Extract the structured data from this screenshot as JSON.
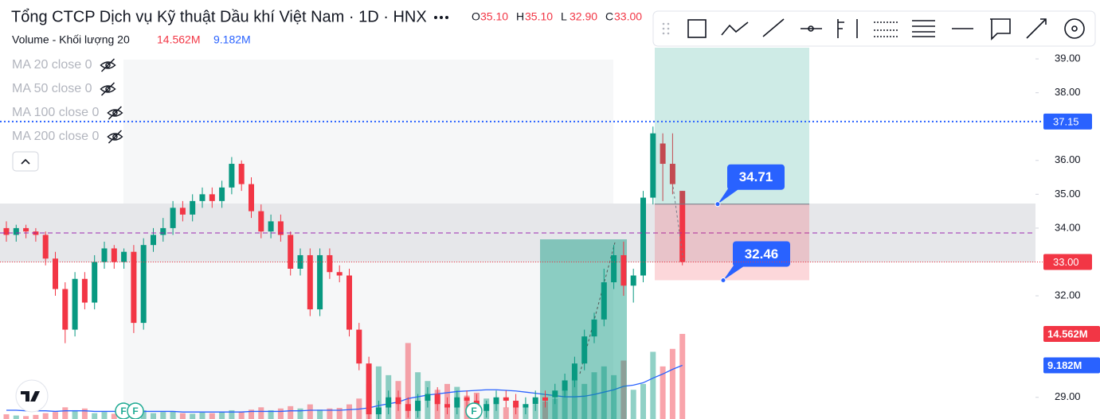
{
  "chart_data": {
    "type": "candlestick",
    "title": "Tổng CTCP Dịch vụ Kỹ thuật Dầu khí Việt Nam · 1D · HNX",
    "ohlc": [
      {
        "name": "O",
        "value": 35.1,
        "label": "35.10"
      },
      {
        "name": "H",
        "value": 35.1,
        "label": "35.10"
      },
      {
        "name": "L",
        "value": 32.9,
        "label": "32.90"
      },
      {
        "name": "C",
        "value": 33.0,
        "label": "33.00"
      }
    ],
    "indicators": [
      "MA 20 close 0",
      "MA 50 close 0",
      "MA 100 close 0",
      "MA 200 close 0"
    ],
    "up_color": "#089981",
    "down_color": "#f23645",
    "open": [
      34.0,
      33.8,
      34.0,
      33.9,
      33.8,
      33.1,
      32.2,
      31.0,
      32.5,
      31.8,
      33.0,
      33.4,
      33.0,
      33.3,
      31.2,
      33.5,
      33.8,
      34.0,
      34.6,
      34.4,
      34.8,
      35.0,
      34.8,
      35.2,
      35.9,
      35.3,
      34.5,
      33.9,
      34.2,
      33.8,
      32.8,
      33.2,
      31.6,
      33.2,
      32.7,
      32.6,
      31.0,
      30.0,
      28.5,
      28.7,
      29.0,
      28.8,
      28.6,
      28.9,
      29.1,
      28.8,
      28.7,
      29.0,
      28.9,
      28.6,
      28.8,
      29.0,
      28.9,
      28.7,
      28.8,
      29.0,
      29.0,
      29.2,
      29.5,
      30.0,
      30.8,
      31.3,
      32.4,
      33.2,
      32.3,
      32.6,
      34.9,
      36.5,
      35.9,
      35.1
    ],
    "high": [
      34.2,
      34.1,
      34.1,
      34.0,
      33.9,
      33.3,
      32.4,
      32.7,
      32.7,
      33.2,
      33.6,
      33.5,
      33.4,
      33.5,
      33.7,
      34.0,
      34.3,
      34.8,
      34.8,
      35.0,
      35.2,
      35.2,
      35.4,
      36.1,
      36.0,
      35.5,
      34.7,
      34.4,
      34.4,
      33.9,
      33.4,
      33.4,
      33.4,
      33.4,
      32.9,
      32.8,
      31.2,
      30.2,
      28.9,
      29.2,
      29.2,
      29.0,
      29.1,
      29.3,
      29.3,
      29.0,
      29.2,
      29.2,
      29.1,
      28.9,
      29.2,
      29.2,
      29.1,
      29.0,
      29.2,
      29.2,
      29.4,
      29.7,
      30.2,
      31.0,
      31.5,
      32.8,
      33.5,
      33.6,
      32.8,
      35.1,
      37.0,
      36.8,
      36.8,
      35.1
    ],
    "low": [
      33.6,
      33.6,
      33.7,
      33.6,
      32.9,
      32.0,
      30.6,
      30.8,
      31.6,
      31.6,
      32.8,
      32.8,
      32.8,
      30.9,
      31.0,
      33.3,
      33.6,
      33.8,
      34.2,
      34.2,
      34.6,
      34.6,
      34.6,
      35.0,
      35.1,
      34.3,
      33.7,
      33.7,
      33.6,
      32.6,
      32.6,
      31.4,
      31.4,
      32.5,
      32.4,
      30.8,
      29.8,
      28.3,
      28.3,
      28.5,
      28.6,
      28.4,
      28.4,
      28.7,
      28.6,
      28.5,
      28.5,
      28.7,
      28.4,
      28.4,
      28.6,
      28.7,
      28.5,
      28.5,
      28.6,
      28.7,
      28.8,
      29.0,
      29.3,
      29.8,
      30.6,
      31.1,
      32.2,
      32.0,
      31.8,
      32.4,
      34.7,
      34.8,
      35.0,
      32.9
    ],
    "close": [
      33.8,
      34.0,
      33.9,
      33.8,
      33.1,
      32.2,
      31.0,
      32.5,
      31.8,
      33.0,
      33.4,
      33.0,
      33.3,
      31.2,
      33.5,
      33.8,
      34.0,
      34.6,
      34.4,
      34.8,
      35.0,
      34.8,
      35.2,
      35.9,
      35.3,
      34.5,
      33.9,
      34.2,
      33.8,
      32.8,
      33.2,
      31.6,
      33.2,
      32.7,
      32.6,
      31.0,
      30.0,
      28.5,
      28.7,
      29.0,
      28.8,
      28.6,
      28.9,
      29.1,
      28.8,
      28.7,
      29.0,
      28.9,
      28.6,
      28.8,
      29.0,
      28.9,
      28.7,
      28.8,
      29.0,
      28.9,
      29.2,
      29.5,
      30.0,
      30.8,
      31.3,
      32.4,
      33.2,
      32.3,
      32.6,
      34.9,
      36.8,
      35.9,
      35.3,
      33.0
    ],
    "volume": {
      "name": "Volume - Khối lượng 20",
      "axis": "y2",
      "values": [
        0.8,
        0.6,
        0.5,
        0.7,
        1.0,
        1.2,
        2.0,
        1.5,
        1.8,
        1.0,
        1.2,
        0.9,
        1.0,
        2.2,
        1.5,
        1.0,
        1.2,
        1.3,
        1.0,
        0.9,
        1.1,
        1.0,
        1.2,
        1.5,
        1.3,
        1.6,
        2.0,
        1.5,
        1.8,
        2.2,
        1.8,
        2.5,
        1.6,
        1.8,
        1.9,
        2.5,
        3.5,
        6.0,
        9.0,
        7.5,
        6.5,
        13.0,
        8.0,
        6.5,
        5.0,
        6.0,
        5.5,
        4.0,
        4.5,
        3.5,
        3.0,
        2.0,
        2.5,
        2.0,
        2.5,
        3.0,
        3.5,
        5.0,
        7.0,
        6.0,
        8.0,
        9.0,
        7.5,
        10.0,
        5.0,
        6.0,
        11.5,
        9.0,
        12.0,
        14.562
      ]
    },
    "volume_ma": {
      "axis": "y2",
      "color": "#2962ff",
      "values": [
        1.5,
        1.5,
        1.4,
        1.4,
        1.4,
        1.3,
        1.4,
        1.4,
        1.4,
        1.3,
        1.3,
        1.3,
        1.2,
        1.3,
        1.3,
        1.3,
        1.3,
        1.3,
        1.2,
        1.2,
        1.2,
        1.2,
        1.2,
        1.2,
        1.2,
        1.3,
        1.3,
        1.3,
        1.3,
        1.4,
        1.4,
        1.5,
        1.5,
        1.5,
        1.5,
        1.6,
        1.7,
        1.9,
        2.3,
        2.6,
        2.9,
        3.5,
        3.8,
        4.1,
        4.3,
        4.5,
        4.7,
        4.8,
        4.9,
        5.0,
        5.0,
        4.9,
        4.8,
        4.6,
        4.4,
        4.2,
        4.0,
        3.8,
        3.8,
        3.9,
        4.2,
        4.6,
        5.0,
        5.6,
        5.8,
        6.2,
        7.0,
        7.7,
        8.5,
        9.182
      ]
    },
    "volume_last": {
      "value": 14.562,
      "label": "14.562M",
      "color": "#f23645"
    },
    "volume_ma_last": {
      "value": 9.182,
      "label": "9.182M",
      "color": "#2962ff"
    },
    "price_lines": [
      {
        "value": 37.15,
        "label": "37.15",
        "color": "#2962ff"
      },
      {
        "value": 33.0,
        "label": "33.00",
        "color": "#f23645"
      }
    ],
    "position": {
      "entry": {
        "value": 34.71,
        "label": "34.71"
      },
      "stop": {
        "value": 32.46,
        "label": "32.46"
      }
    },
    "events": [
      "F",
      "F",
      "F"
    ],
    "ylim": [
      28.36,
      40.74
    ],
    "y2lim": [
      0,
      71.7
    ],
    "yticks": [
      {
        "value": 29,
        "label": "29.00"
      },
      {
        "value": 32,
        "label": "32.00"
      },
      {
        "value": 34,
        "label": "34.00"
      },
      {
        "value": 35,
        "label": "35.00"
      },
      {
        "value": 36,
        "label": "36.00"
      },
      {
        "value": 38,
        "label": "38.00"
      },
      {
        "value": 39,
        "label": "39.00"
      }
    ],
    "grid": false
  }
}
